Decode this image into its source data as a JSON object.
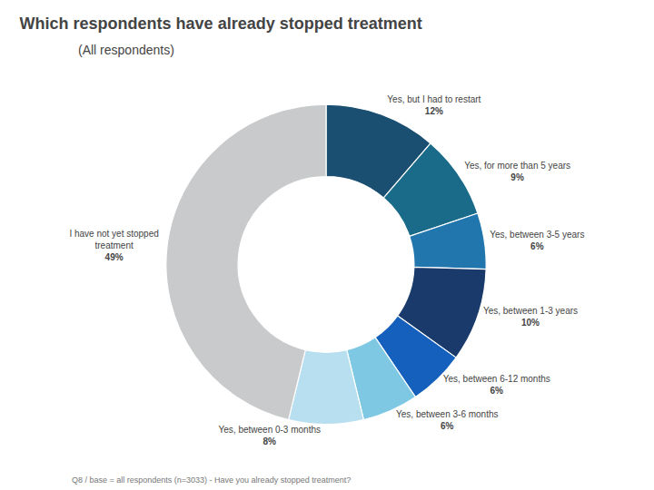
{
  "chart_data": {
    "type": "pie",
    "title": "Which respondents have already stopped treatment",
    "subtitle": "(All respondents)",
    "footnote": "Q8 / base = all respondents (n=3033) - Have you already stopped treatment?",
    "categories": [
      "Yes, but I had to restart",
      "Yes, for more than 5 years",
      "Yes, between 3-5 years",
      "Yes, between 1-3 years",
      "Yes, between 6-12 months",
      "Yes, between 3-6 months",
      "Yes, between 0-3 months",
      "I have not yet stopped\ntreatment"
    ],
    "values": [
      12,
      9,
      6,
      10,
      6,
      6,
      8,
      49
    ],
    "value_labels": [
      "12%",
      "9%",
      "6%",
      "10%",
      "6%",
      "6%",
      "8%",
      "49%"
    ],
    "colors": [
      "#1a4f72",
      "#1a6b8a",
      "#2176ae",
      "#1a3a6b",
      "#1560bd",
      "#7ec8e3",
      "#b8dff0",
      "#c8cacb"
    ],
    "data_labels": true
  }
}
